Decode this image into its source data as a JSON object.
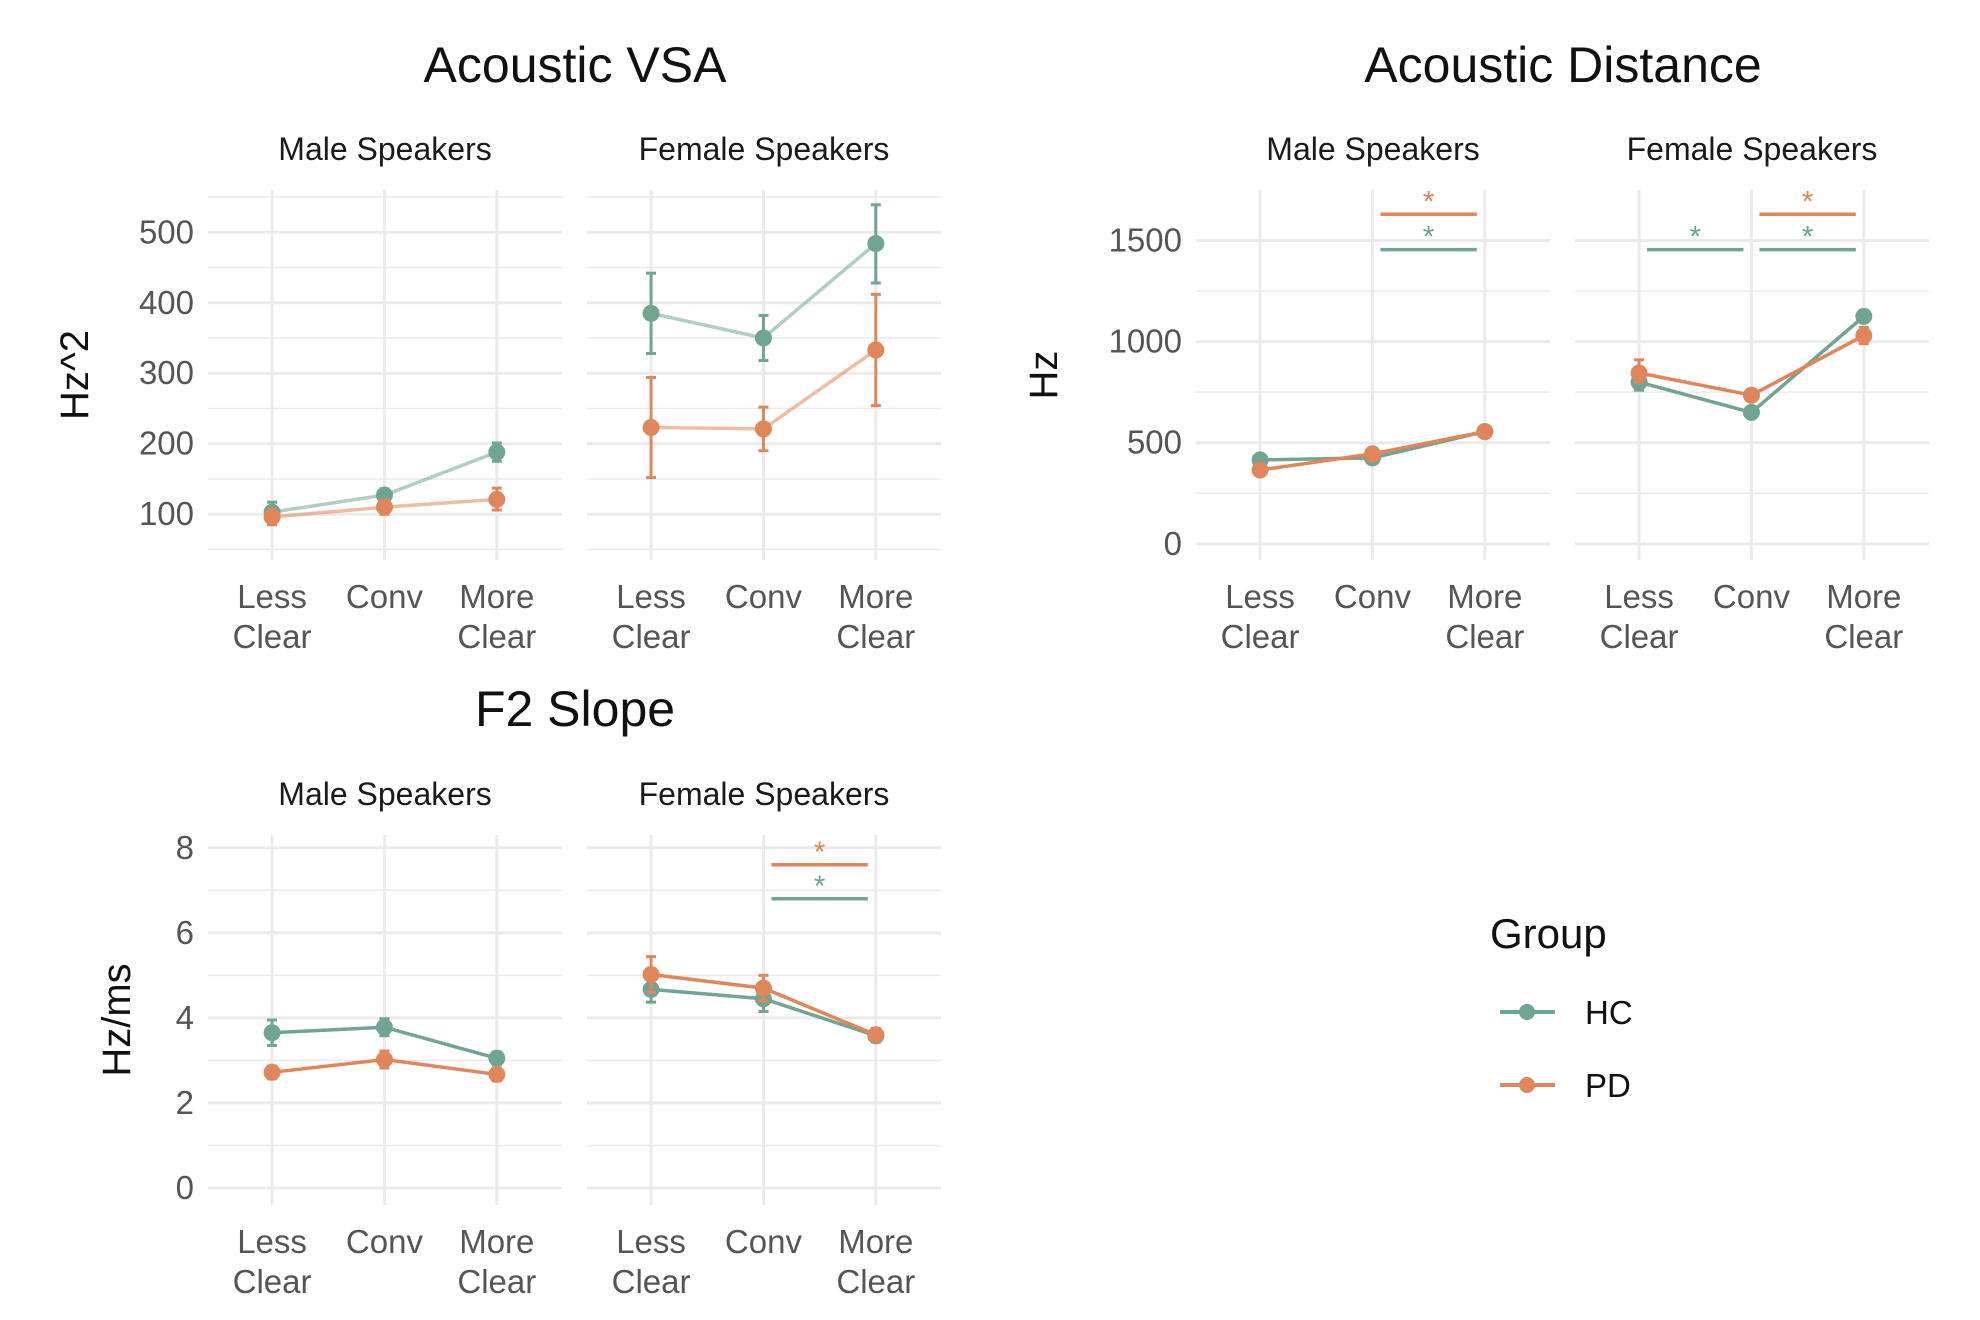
{
  "colors": {
    "HC": "#6FA591",
    "PD": "#E0865A",
    "grid": "#EBEBEB"
  },
  "legend": {
    "title": "Group",
    "items": [
      {
        "name": "HC",
        "color": "#6FA591"
      },
      {
        "name": "PD",
        "color": "#E0865A"
      }
    ]
  },
  "chart_data": [
    {
      "type": "line",
      "title": "Acoustic VSA",
      "ylabel": "Hz^2",
      "ylim": [
        35,
        560
      ],
      "yticks": [
        100,
        200,
        300,
        400,
        500
      ],
      "categories": [
        "Less\nClear",
        "Conv",
        "More\nClear"
      ],
      "facets": [
        {
          "label": "Male Speakers",
          "series": [
            {
              "name": "HC",
              "values": [
                103,
                127,
                188
              ],
              "errors": [
                [
                  92,
                  117
                ],
                [
                  118,
                  136
                ],
                [
                  175,
                  201
                ]
              ],
              "muted": true
            },
            {
              "name": "PD",
              "values": [
                96,
                110,
                121
              ],
              "errors": [
                [
                  85,
                  107
                ],
                [
                  100,
                  120
                ],
                [
                  106,
                  137
                ]
              ],
              "muted": true
            }
          ],
          "sig": []
        },
        {
          "label": "Female Speakers",
          "series": [
            {
              "name": "HC",
              "values": [
                385,
                350,
                484
              ],
              "errors": [
                [
                  328,
                  442
                ],
                [
                  318,
                  382
                ],
                [
                  428,
                  539
                ]
              ],
              "muted": true
            },
            {
              "name": "PD",
              "values": [
                223,
                221,
                333
              ],
              "errors": [
                [
                  152,
                  294
                ],
                [
                  190,
                  252
                ],
                [
                  254,
                  412
                ]
              ],
              "muted": true
            }
          ],
          "sig": []
        }
      ]
    },
    {
      "type": "line",
      "title": "Acoustic Distance",
      "ylabel": "Hz",
      "ylim": [
        -80,
        1750
      ],
      "yticks": [
        0,
        500,
        1000,
        1500
      ],
      "categories": [
        "Less\nClear",
        "Conv",
        "More\nClear"
      ],
      "facets": [
        {
          "label": "Male Speakers",
          "series": [
            {
              "name": "HC",
              "values": [
                415,
                425,
                555
              ],
              "errors": [
                [
                  395,
                  435
                ],
                [
                  405,
                  445
                ],
                [
                  535,
                  575
                ]
              ],
              "muted": false
            },
            {
              "name": "PD",
              "values": [
                365,
                445,
                555
              ],
              "errors": [
                [
                  345,
                  385
                ],
                [
                  425,
                  465
                ],
                [
                  535,
                  575
                ]
              ],
              "muted": false
            }
          ],
          "sig": [
            {
              "from": 1,
              "to": 2,
              "value": 1630,
              "group": "PD",
              "label": "*"
            },
            {
              "from": 1,
              "to": 2,
              "value": 1455,
              "group": "HC",
              "label": "*"
            }
          ]
        },
        {
          "label": "Female Speakers",
          "series": [
            {
              "name": "HC",
              "values": [
                800,
                650,
                1125
              ],
              "errors": [
                [
                  760,
                  840
                ],
                [
                  625,
                  675
                ],
                [
                  1105,
                  1145
                ]
              ],
              "muted": false
            },
            {
              "name": "PD",
              "values": [
                845,
                735,
                1030
              ],
              "errors": [
                [
                  800,
                  910
                ],
                [
                  710,
                  760
                ],
                [
                  990,
                  1070
                ]
              ],
              "muted": false
            }
          ],
          "sig": [
            {
              "from": 0,
              "to": 1,
              "value": 1455,
              "group": "HC",
              "label": "*"
            },
            {
              "from": 1,
              "to": 2,
              "value": 1630,
              "group": "PD",
              "label": "*"
            },
            {
              "from": 1,
              "to": 2,
              "value": 1455,
              "group": "HC",
              "label": "*"
            }
          ]
        }
      ]
    },
    {
      "type": "line",
      "title": "F2 Slope",
      "ylabel": "Hz/ms",
      "ylim": [
        -0.4,
        8.3
      ],
      "yticks": [
        0,
        2,
        4,
        6,
        8
      ],
      "categories": [
        "Less\nClear",
        "Conv",
        "More\nClear"
      ],
      "facets": [
        {
          "label": "Male Speakers",
          "series": [
            {
              "name": "HC",
              "values": [
                3.65,
                3.78,
                3.05
              ],
              "errors": [
                [
                  3.35,
                  3.95
                ],
                [
                  3.58,
                  3.98
                ],
                [
                  2.9,
                  3.2
                ]
              ],
              "muted": false
            },
            {
              "name": "PD",
              "values": [
                2.72,
                3.02,
                2.67
              ],
              "errors": [
                [
                  2.57,
                  2.87
                ],
                [
                  2.82,
                  3.22
                ],
                [
                  2.52,
                  2.82
                ]
              ],
              "muted": false
            }
          ],
          "sig": []
        },
        {
          "label": "Female Speakers",
          "series": [
            {
              "name": "HC",
              "values": [
                4.67,
                4.45,
                3.58
              ],
              "errors": [
                [
                  4.37,
                  4.97
                ],
                [
                  4.15,
                  4.75
                ],
                [
                  3.43,
                  3.73
                ]
              ],
              "muted": false
            },
            {
              "name": "PD",
              "values": [
                5.02,
                4.7,
                3.6
              ],
              "errors": [
                [
                  4.6,
                  5.44
                ],
                [
                  4.4,
                  5.0
                ],
                [
                  3.45,
                  3.75
                ]
              ],
              "muted": false
            }
          ],
          "sig": [
            {
              "from": 1,
              "to": 2,
              "value": 7.6,
              "group": "PD",
              "label": "*"
            },
            {
              "from": 1,
              "to": 2,
              "value": 6.8,
              "group": "HC",
              "label": "*"
            }
          ]
        }
      ]
    }
  ]
}
